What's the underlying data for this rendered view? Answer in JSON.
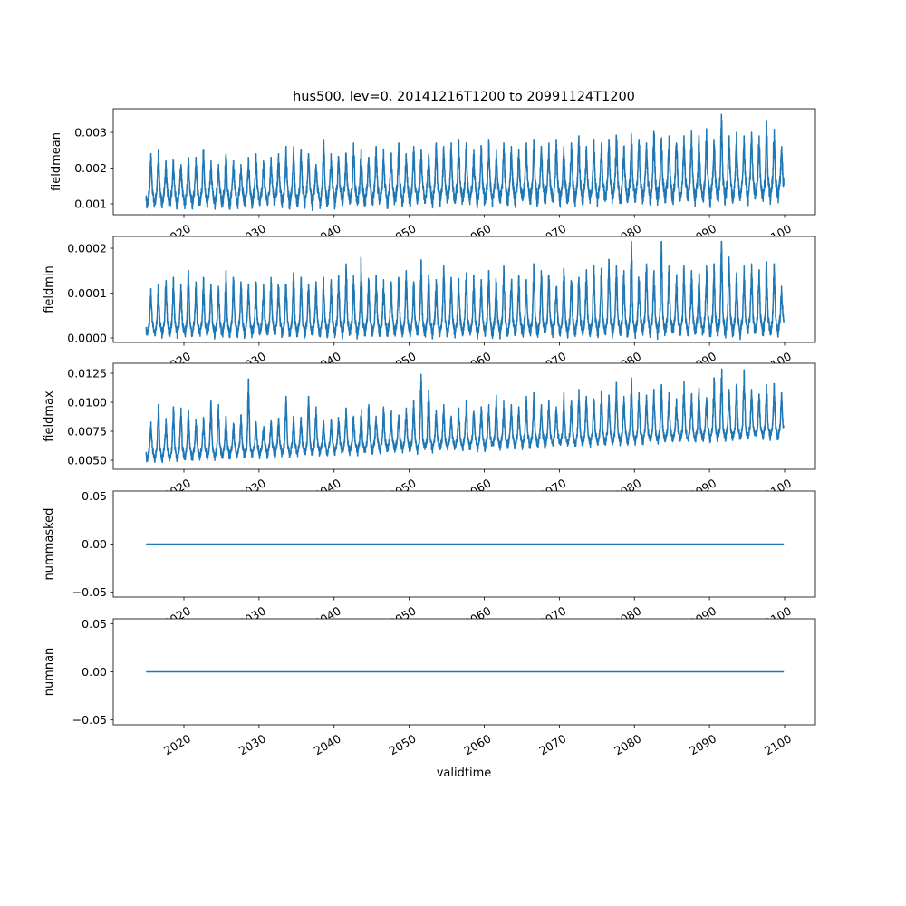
{
  "chart_data": {
    "type": "line",
    "title": "hus500, lev=0, 20141216T1200 to 20991124T1200",
    "xlabel": "validtime",
    "xlim": [
      2011.0,
      2104.4
    ],
    "xticks": [
      "2020",
      "2030",
      "2040",
      "2050",
      "2060",
      "2070",
      "2080",
      "2090",
      "2100"
    ],
    "xtick_values": [
      2020,
      2030,
      2040,
      2050,
      2060,
      2070,
      2080,
      2090,
      2100
    ],
    "x_start": 2014.96,
    "x_end": 2099.9,
    "line_color": "#1f77b4",
    "panels": [
      {
        "ylabel": "fieldmean",
        "ylim": [
          0.000696,
          0.00366
        ],
        "yticks": [
          "0.001",
          "0.002",
          "0.003"
        ],
        "ytick_values": [
          0.001,
          0.002,
          0.003
        ],
        "annual_peaks": [
          0.0024,
          0.0025,
          0.0022,
          0.0022,
          0.0021,
          0.0023,
          0.0023,
          0.0025,
          0.0022,
          0.0021,
          0.0024,
          0.0022,
          0.0021,
          0.0023,
          0.0024,
          0.0022,
          0.0023,
          0.0024,
          0.0026,
          0.0026,
          0.0025,
          0.0024,
          0.0021,
          0.0028,
          0.0024,
          0.0023,
          0.0024,
          0.0027,
          0.0025,
          0.0023,
          0.0026,
          0.0025,
          0.0024,
          0.0027,
          0.0024,
          0.0026,
          0.0025,
          0.0024,
          0.0027,
          0.0026,
          0.0027,
          0.0028,
          0.0027,
          0.0025,
          0.0026,
          0.0028,
          0.0025,
          0.0027,
          0.0026,
          0.0025,
          0.0027,
          0.0028,
          0.0026,
          0.0027,
          0.0028,
          0.0026,
          0.0027,
          0.0029,
          0.0026,
          0.0028,
          0.0027,
          0.0028,
          0.0029,
          0.0026,
          0.0029,
          0.0028,
          0.0027,
          0.003,
          0.0028,
          0.0029,
          0.0029,
          0.0029,
          0.003,
          0.0029,
          0.0031,
          0.0028,
          0.0035,
          0.0029,
          0.003,
          0.0029,
          0.003,
          0.0029,
          0.0033,
          0.0031,
          0.0026
        ],
        "trough_start": 0.0009,
        "trough_end": 0.00105,
        "base_start": 0.0013,
        "base_end": 0.0016
      },
      {
        "ylabel": "fieldmin",
        "ylim": [
          -1.01e-05,
          0.0002263
        ],
        "yticks": [
          "0.0000",
          "0.0001",
          "0.0002"
        ],
        "ytick_values": [
          0,
          0.0001,
          0.0002
        ],
        "annual_peaks": [
          0.00011,
          0.00012,
          0.000135,
          0.000135,
          0.00012,
          0.00016,
          0.000125,
          0.000135,
          0.00012,
          0.000115,
          0.00015,
          0.000135,
          0.000125,
          0.00012,
          0.000125,
          0.00012,
          0.000135,
          0.000125,
          0.00013,
          0.000145,
          0.000135,
          0.00012,
          0.000125,
          0.000135,
          0.00013,
          0.00014,
          0.000165,
          0.000145,
          0.000175,
          0.00013,
          0.00014,
          0.00013,
          0.000125,
          0.000135,
          0.00015,
          0.000125,
          0.00017,
          0.00014,
          0.00013,
          0.00016,
          0.000135,
          0.00013,
          0.000145,
          0.00014,
          0.00013,
          0.00015,
          0.000135,
          0.00016,
          0.000145,
          0.00014,
          0.00013,
          0.000165,
          0.00015,
          0.00014,
          0.000135,
          0.000155,
          0.00015,
          0.000135,
          0.000145,
          0.00016,
          0.000155,
          0.000175,
          0.00016,
          0.00015,
          0.000215,
          0.00014,
          0.000165,
          0.00015,
          0.000215,
          0.00016,
          0.00014,
          0.00016,
          0.00015,
          0.000145,
          0.00016,
          0.000165,
          0.000215,
          0.00018,
          0.000145,
          0.00016,
          0.000165,
          0.00015,
          0.00017,
          0.000165,
          0.000115
        ],
        "trough_start": 4e-06,
        "trough_end": 5e-06,
        "base_start": 3e-05,
        "base_end": 4e-05
      },
      {
        "ylabel": "fieldmax",
        "ylim": [
          0.00422,
          0.01336
        ],
        "yticks": [
          "0.0050",
          "0.0075",
          "0.0100",
          "0.0125"
        ],
        "ytick_values": [
          0.005,
          0.0075,
          0.01,
          0.0125
        ],
        "annual_peaks": [
          0.0083,
          0.0098,
          0.0086,
          0.0096,
          0.0095,
          0.0093,
          0.0085,
          0.0087,
          0.0101,
          0.0098,
          0.0088,
          0.0082,
          0.0089,
          0.012,
          0.0083,
          0.0079,
          0.0084,
          0.0085,
          0.0105,
          0.0088,
          0.0087,
          0.0105,
          0.0096,
          0.0084,
          0.0085,
          0.0087,
          0.0095,
          0.0088,
          0.0093,
          0.0098,
          0.0088,
          0.0096,
          0.0091,
          0.0089,
          0.0095,
          0.0101,
          0.0124,
          0.0118,
          0.0093,
          0.0098,
          0.0088,
          0.0095,
          0.0101,
          0.0093,
          0.0096,
          0.0098,
          0.0106,
          0.0101,
          0.0098,
          0.0096,
          0.0105,
          0.0108,
          0.0098,
          0.0101,
          0.0096,
          0.0108,
          0.0101,
          0.0111,
          0.0105,
          0.0103,
          0.0109,
          0.0106,
          0.0117,
          0.0105,
          0.0121,
          0.0108,
          0.0106,
          0.0111,
          0.0115,
          0.0108,
          0.0103,
          0.0118,
          0.0107,
          0.0112,
          0.0104,
          0.0121,
          0.0131,
          0.0111,
          0.0118,
          0.0128,
          0.0111,
          0.0107,
          0.0115,
          0.0116,
          0.0108
        ],
        "trough_start": 0.0049,
        "trough_end": 0.0069,
        "base_start": 0.0058,
        "base_end": 0.0078
      },
      {
        "ylabel": "nummasked",
        "ylim": [
          -0.055,
          0.055
        ],
        "yticks": [
          "−0.05",
          "0.00",
          "0.05"
        ],
        "ytick_values": [
          -0.05,
          0,
          0.05
        ],
        "constant_value": 0
      },
      {
        "ylabel": "numnan",
        "ylim": [
          -0.055,
          0.055
        ],
        "yticks": [
          "−0.05",
          "0.00",
          "0.05"
        ],
        "ytick_values": [
          -0.05,
          0,
          0.05
        ],
        "constant_value": 0
      }
    ]
  }
}
